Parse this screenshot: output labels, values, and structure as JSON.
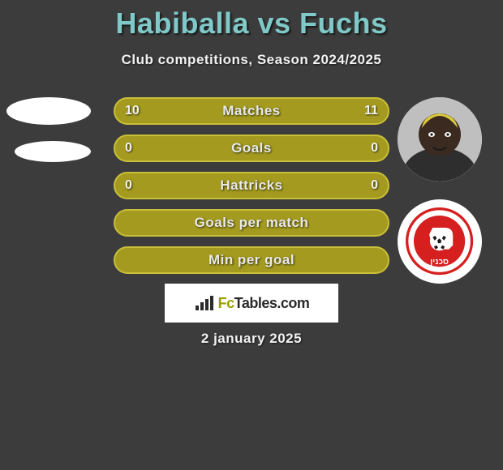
{
  "title": "Habiballa vs Fuchs",
  "subtitle": "Club competitions, Season 2024/2025",
  "date": "2 january 2025",
  "watermark": {
    "prefix": "Fc",
    "rest": "Tables.com"
  },
  "colors": {
    "title": "#7fc9c9",
    "bar_fill": "#a39a1f",
    "bar_border": "#c9bf3a",
    "background": "#3c3c3c",
    "text": "#f2f2f2",
    "watermark_accent": "#9aa000"
  },
  "bars": [
    {
      "label": "Matches",
      "left": "10",
      "right": "11",
      "left_frac": 0.476,
      "right_frac": 0.524,
      "show_values": true
    },
    {
      "label": "Goals",
      "left": "0",
      "right": "0",
      "left_frac": 0.5,
      "right_frac": 0.5,
      "show_values": true
    },
    {
      "label": "Hattricks",
      "left": "0",
      "right": "0",
      "left_frac": 0.5,
      "right_frac": 0.5,
      "show_values": true
    },
    {
      "label": "Goals per match",
      "left": "",
      "right": "",
      "left_frac": 0.5,
      "right_frac": 0.5,
      "show_values": false
    },
    {
      "label": "Min per goal",
      "left": "",
      "right": "",
      "left_frac": 0.5,
      "right_frac": 0.5,
      "show_values": false
    }
  ],
  "left_player": {
    "name": "Habiballa"
  },
  "right_player": {
    "name": "Fuchs"
  }
}
